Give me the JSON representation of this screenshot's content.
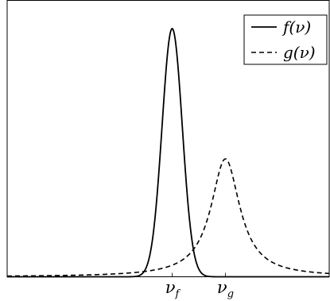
{
  "chart_data": {
    "type": "line",
    "title": "",
    "xlabel": "",
    "ylabel": "",
    "grid": false,
    "legend_position": "top-right",
    "x_ticks": [
      {
        "label_main": "ν",
        "label_sub": "f",
        "x": 0.0
      },
      {
        "label_main": "ν",
        "label_sub": "g",
        "x": 1.0
      }
    ],
    "xlim": [
      -3.1,
      2.95
    ],
    "ylim": [
      0,
      1.0
    ],
    "series": [
      {
        "name": "f(ν)",
        "style": "solid",
        "color": "#000000",
        "shape": "gaussian",
        "center": 0.0,
        "amplitude": 1.0,
        "sigma": 0.19
      },
      {
        "name": "g(ν)",
        "style": "dashed",
        "color": "#000000",
        "shape": "lorentzian",
        "center": 1.0,
        "amplitude": 0.475,
        "hwhm": 0.33
      }
    ]
  }
}
